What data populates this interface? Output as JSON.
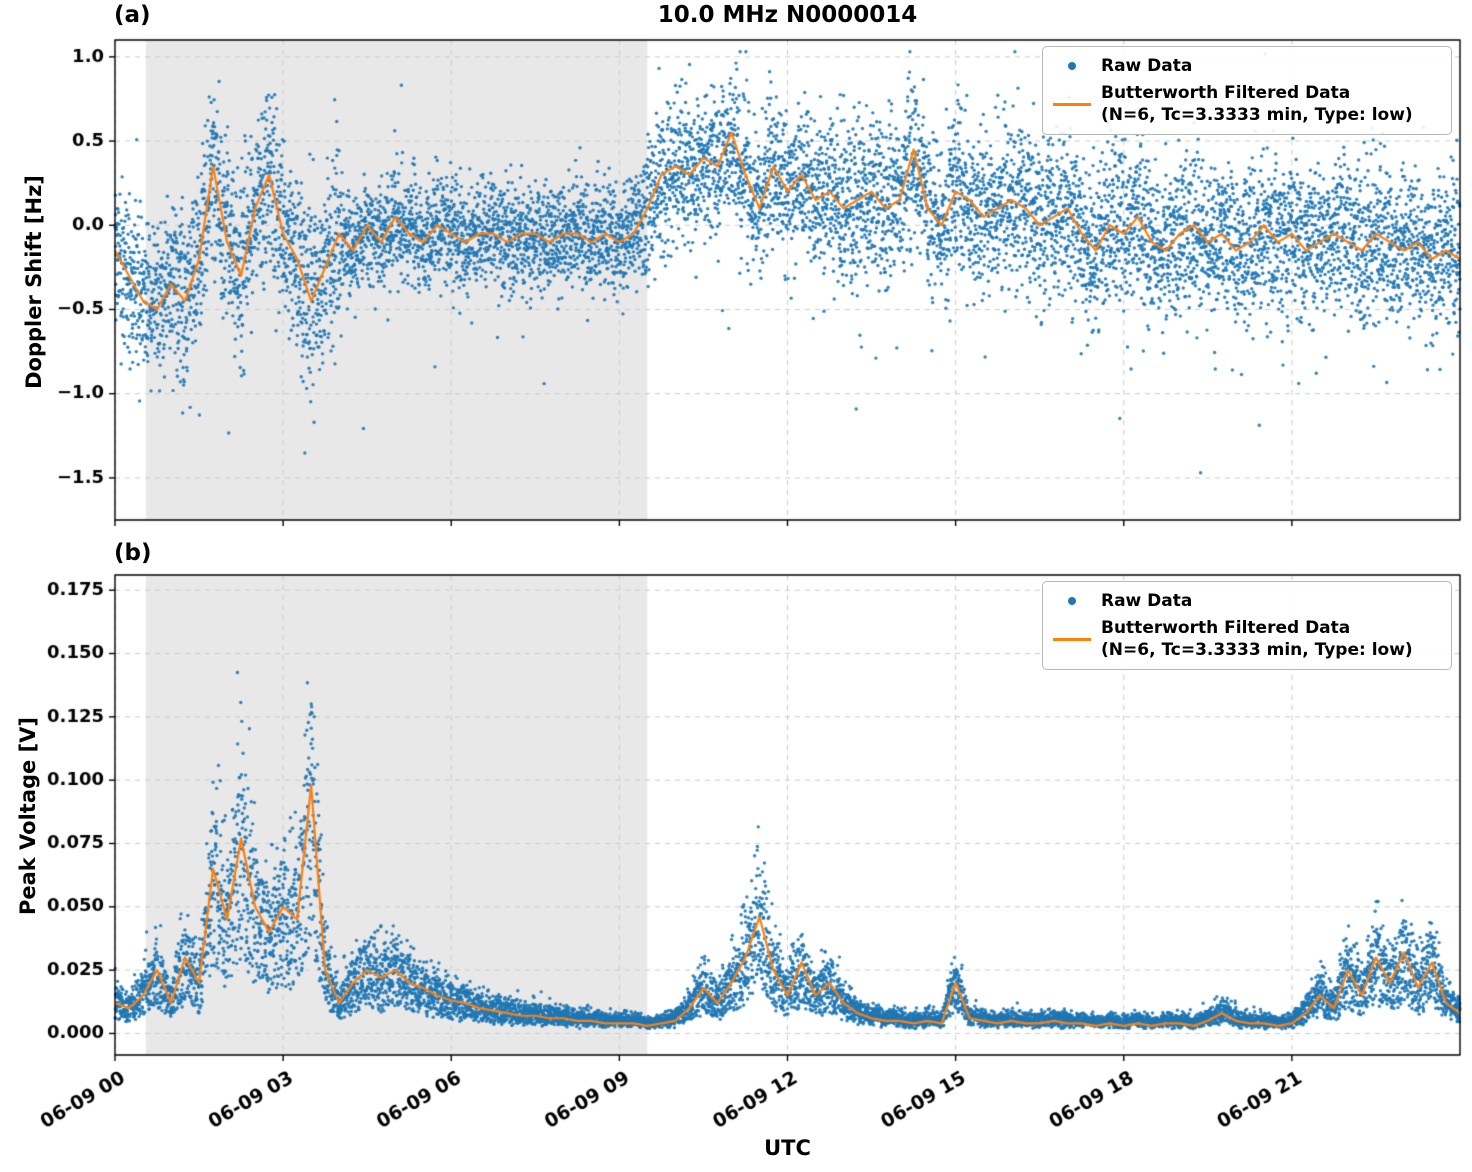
{
  "figure": {
    "xlabel": "UTC",
    "background": "#ffffff",
    "colors": {
      "raw": "#1f77b4",
      "filtered": "#ff7f0e",
      "shading": "#e8e8e8",
      "grid": "#cccccc",
      "spine": "#000000"
    },
    "legend": {
      "raw_label": "Raw Data",
      "filtered_label_line1": "Butterworth Filtered Data",
      "filtered_label_line2": "(N=6, Tc=3.3333 min, Type: low)"
    }
  },
  "chart_data": [
    {
      "type": "scatter",
      "panel_label": "(a)",
      "title": "10.0 MHz N0000014",
      "ylabel": "Doppler Shift [Hz]",
      "ylim": [
        -1.75,
        1.1
      ],
      "yticks": [
        1.0,
        0.5,
        0.0,
        -0.5,
        -1.0,
        -1.5
      ],
      "ytick_labels": [
        "1.0",
        "0.5",
        "0.0",
        "−0.5",
        "−1.0",
        "−1.5"
      ],
      "xlim_hours": [
        0,
        24
      ],
      "xticks_hours": [
        0,
        3,
        6,
        9,
        12,
        15,
        18,
        21
      ],
      "xtick_labels": [
        "06-09 00",
        "06-09 03",
        "06-09 06",
        "06-09 09",
        "06-09 12",
        "06-09 15",
        "06-09 18",
        "06-09 21"
      ],
      "shaded_region_hours": [
        0.55,
        9.5
      ],
      "grid": true,
      "legend_position": "upper right",
      "series": [
        {
          "name": "Raw Data",
          "style": "scatter",
          "noise_model": {
            "sd_segments": [
              [
                0,
                1,
                0.22
              ],
              [
                1,
                4,
                0.28
              ],
              [
                4,
                9.5,
                0.16
              ],
              [
                9.5,
                13,
                0.22
              ],
              [
                13,
                24,
                0.24
              ]
            ],
            "neg_outlier_rate": 0.006,
            "neg_outlier_range": [
              0.3,
              1.1
            ],
            "pos_outlier_rate": 0.003,
            "pos_outlier_range": [
              0.25,
              0.6
            ],
            "clamp": [
              -1.68,
              1.03
            ]
          }
        },
        {
          "name": "Butterworth Filtered Data (N=6, Tc=3.3333 min, Type: low)",
          "style": "line",
          "x_hours_start": 0,
          "x_hours_step": 0.25,
          "values": [
            -0.15,
            -0.3,
            -0.45,
            -0.5,
            -0.35,
            -0.45,
            -0.2,
            0.35,
            -0.1,
            -0.3,
            0.1,
            0.3,
            -0.05,
            -0.2,
            -0.45,
            -0.25,
            -0.05,
            -0.15,
            0.0,
            -0.1,
            0.05,
            -0.05,
            -0.1,
            0.0,
            -0.05,
            -0.1,
            -0.05,
            -0.05,
            -0.1,
            -0.05,
            -0.05,
            -0.1,
            -0.05,
            -0.05,
            -0.1,
            -0.05,
            -0.1,
            -0.05,
            0.1,
            0.3,
            0.35,
            0.3,
            0.4,
            0.35,
            0.55,
            0.3,
            0.1,
            0.35,
            0.2,
            0.3,
            0.15,
            0.2,
            0.1,
            0.15,
            0.2,
            0.1,
            0.15,
            0.45,
            0.1,
            0.0,
            0.2,
            0.15,
            0.05,
            0.1,
            0.15,
            0.1,
            0.0,
            0.05,
            0.1,
            -0.05,
            -0.15,
            0.0,
            -0.05,
            0.05,
            -0.1,
            -0.15,
            -0.05,
            0.0,
            -0.1,
            -0.05,
            -0.15,
            -0.1,
            0.0,
            -0.1,
            -0.05,
            -0.15,
            -0.1,
            -0.05,
            -0.1,
            -0.15,
            -0.05,
            -0.1,
            -0.15,
            -0.1,
            -0.2,
            -0.15,
            -0.2
          ]
        }
      ]
    },
    {
      "type": "scatter",
      "panel_label": "(b)",
      "title": "",
      "ylabel": "Peak Voltage [V]",
      "ylim": [
        -0.0085,
        0.181
      ],
      "yticks": [
        0.175,
        0.15,
        0.125,
        0.1,
        0.075,
        0.05,
        0.025,
        0.0
      ],
      "ytick_labels": [
        "0.175",
        "0.150",
        "0.125",
        "0.100",
        "0.075",
        "0.050",
        "0.025",
        "0.000"
      ],
      "xlim_hours": [
        0,
        24
      ],
      "xticks_hours": [
        0,
        3,
        6,
        9,
        12,
        15,
        18,
        21
      ],
      "xtick_labels": [
        "06-09 00",
        "06-09 03",
        "06-09 06",
        "06-09 09",
        "06-09 12",
        "06-09 15",
        "06-09 18",
        "06-09 21"
      ],
      "shaded_region_hours": [
        0.55,
        9.5
      ],
      "grid": true,
      "legend_position": "upper right",
      "series": [
        {
          "name": "Raw Data",
          "style": "scatter",
          "noise_model": {
            "multiplicative": true,
            "factor_base": [
              0.35,
              1.35
            ],
            "tail1_rate": 0.2,
            "tail1_extra": 0.6,
            "tail2_rate": 0.05,
            "tail2_extra": 0.65,
            "additive_floor": 0.0015,
            "clamp": [
              0.0004,
              0.171
            ]
          }
        },
        {
          "name": "Butterworth Filtered Data (N=6, Tc=3.3333 min, Type: low)",
          "style": "line",
          "x_hours_start": 0,
          "x_hours_step": 0.25,
          "values": [
            0.012,
            0.01,
            0.015,
            0.025,
            0.012,
            0.03,
            0.02,
            0.065,
            0.045,
            0.077,
            0.05,
            0.04,
            0.05,
            0.045,
            0.098,
            0.025,
            0.012,
            0.02,
            0.025,
            0.022,
            0.025,
            0.02,
            0.018,
            0.015,
            0.013,
            0.012,
            0.01,
            0.009,
            0.008,
            0.007,
            0.007,
            0.006,
            0.006,
            0.005,
            0.005,
            0.004,
            0.004,
            0.004,
            0.003,
            0.004,
            0.005,
            0.01,
            0.018,
            0.012,
            0.02,
            0.03,
            0.046,
            0.025,
            0.015,
            0.028,
            0.015,
            0.02,
            0.012,
            0.008,
            0.006,
            0.005,
            0.005,
            0.004,
            0.005,
            0.004,
            0.02,
            0.006,
            0.005,
            0.004,
            0.005,
            0.004,
            0.004,
            0.005,
            0.004,
            0.004,
            0.003,
            0.004,
            0.003,
            0.004,
            0.003,
            0.004,
            0.004,
            0.003,
            0.005,
            0.008,
            0.005,
            0.004,
            0.004,
            0.003,
            0.004,
            0.008,
            0.015,
            0.01,
            0.025,
            0.015,
            0.03,
            0.02,
            0.032,
            0.018,
            0.028,
            0.012,
            0.008
          ]
        }
      ]
    }
  ]
}
